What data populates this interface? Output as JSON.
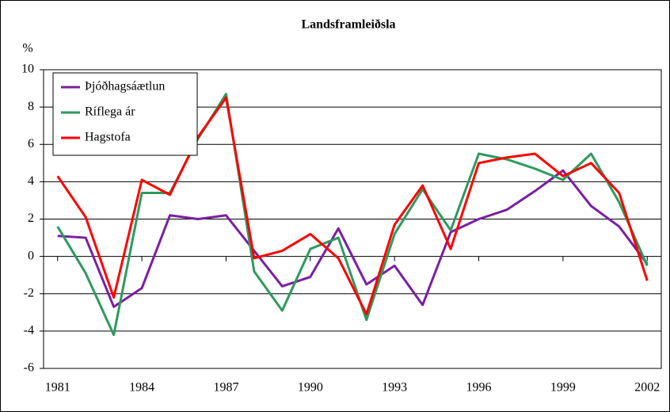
{
  "chart_data": {
    "type": "line",
    "title": "Landsframleiðsla",
    "y_label": "%",
    "x": [
      1981,
      1982,
      1983,
      1984,
      1985,
      1986,
      1987,
      1988,
      1989,
      1990,
      1991,
      1992,
      1993,
      1994,
      1995,
      1996,
      1997,
      1998,
      1999,
      2000,
      2001,
      2002
    ],
    "xlim": [
      1980.5,
      2002.5
    ],
    "xticks": [
      1981,
      1984,
      1987,
      1990,
      1993,
      1996,
      1999,
      2002
    ],
    "ylim": [
      -6,
      10
    ],
    "yticks": [
      -6,
      -4,
      -2,
      0,
      2,
      4,
      6,
      8,
      10
    ],
    "grid": true,
    "legend": "top-left",
    "series": [
      {
        "name": "Þjóðhagsáætlun",
        "color": "#7b1fa2",
        "values": [
          1.1,
          1.0,
          -2.7,
          -1.7,
          2.2,
          2.0,
          2.2,
          0.3,
          -1.6,
          -1.1,
          1.5,
          -1.5,
          -0.5,
          -2.6,
          1.3,
          2.0,
          2.5,
          3.5,
          4.6,
          2.7,
          1.6,
          -0.4
        ]
      },
      {
        "name": "Ríflega ár",
        "color": "#2e9a5e",
        "values": [
          1.6,
          -0.9,
          -4.2,
          3.4,
          3.4,
          6.3,
          8.7,
          -0.8,
          -2.9,
          0.4,
          1.0,
          -3.4,
          1.2,
          3.6,
          1.4,
          5.5,
          5.2,
          4.7,
          4.1,
          5.5,
          2.9,
          -0.5
        ]
      },
      {
        "name": "Hagstofa",
        "color": "#ff0000",
        "values": [
          4.3,
          2.1,
          -2.2,
          4.1,
          3.3,
          6.4,
          8.5,
          -0.1,
          0.3,
          1.2,
          -0.1,
          -3.1,
          1.7,
          3.8,
          0.4,
          5.0,
          5.3,
          5.5,
          4.3,
          5.0,
          3.4,
          -1.3
        ]
      }
    ]
  }
}
